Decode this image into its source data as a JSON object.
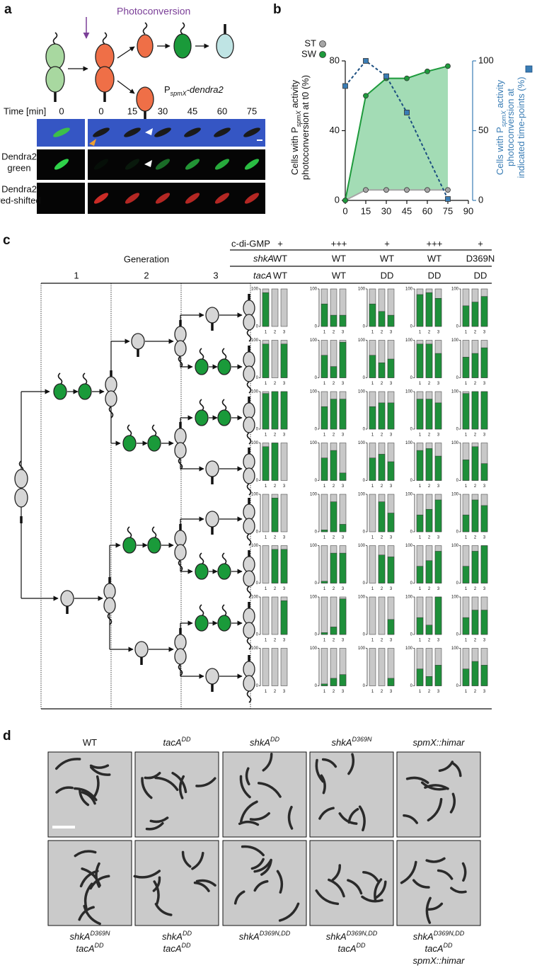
{
  "panel_labels": [
    "a",
    "b",
    "c",
    "d"
  ],
  "panel_a": {
    "photoconversion": "Photoconversion",
    "construct": [
      "P",
      "spmX",
      "-dendra2"
    ],
    "time_label": "Time [min]",
    "times": [
      0,
      0,
      15,
      30,
      45,
      60,
      75
    ],
    "rows": [
      [
        "Dendra2",
        "green"
      ],
      [
        "Dendra2",
        "red-shifted"
      ]
    ]
  },
  "chart_data": [
    {
      "type": "line",
      "x": [
        0,
        15,
        30,
        45,
        60,
        75
      ],
      "xlim": [
        0,
        90
      ],
      "xticks": [
        0,
        15,
        30,
        45,
        60,
        75,
        90
      ],
      "ylim": [
        0,
        80
      ],
      "yticks": [
        0,
        40,
        80
      ],
      "y2lim": [
        0,
        100
      ],
      "y2ticks": [
        0,
        50,
        100
      ],
      "ylabel": [
        [
          "Cells with P",
          "spmX",
          " activity"
        ],
        [
          "photoconversion at t0 (%)"
        ]
      ],
      "y2label": [
        [
          "Cells with P",
          "spmX",
          " activity"
        ],
        [
          "photoconversion at"
        ],
        [
          "indicated time-points (%)"
        ]
      ],
      "y2color": "#3a7db5",
      "legend": "top-left",
      "series": [
        {
          "name": "ST",
          "color": "#a6a6a6",
          "values": [
            0,
            6,
            6,
            6,
            6,
            6
          ]
        },
        {
          "name": "SW",
          "color": "#1e9a3c",
          "fill": "#a3dcb5",
          "values": [
            0,
            60,
            70,
            70,
            74,
            77
          ]
        },
        {
          "color": "#3a7db5",
          "axis": "y2",
          "marker": "square",
          "dashed": true,
          "x": [
            0,
            15,
            30,
            45,
            75
          ],
          "values": [
            82,
            100,
            89,
            63,
            1
          ]
        }
      ]
    },
    {
      "type": "stacked-bar-grid",
      "header": [
        {
          "label": "c-di-GMP",
          "italic": false,
          "values": [
            "+",
            "+++",
            "+",
            "+++",
            "+"
          ]
        },
        {
          "label": "shkA",
          "italic": true,
          "values": [
            "WT",
            "WT",
            "WT",
            "WT",
            "D369N"
          ]
        },
        {
          "label": "tacA",
          "italic": true,
          "values": [
            "WT",
            "WT",
            "DD",
            "DD",
            "DD"
          ]
        }
      ],
      "generation_label": "Generation",
      "generations": [
        1,
        2,
        3
      ],
      "ylim": [
        0,
        100
      ],
      "yticks": [
        0,
        100
      ],
      "bar_labels": [
        1,
        2,
        3
      ],
      "colors": [
        "#1e8f3a",
        "#c8c8c8"
      ],
      "rows": [
        [
          [
            90,
            0,
            0
          ],
          [
            60,
            30,
            30
          ],
          [
            60,
            40,
            30
          ],
          [
            85,
            90,
            75
          ],
          [
            55,
            65,
            80
          ]
        ],
        [
          [
            90,
            0,
            90
          ],
          [
            60,
            30,
            95
          ],
          [
            60,
            40,
            50
          ],
          [
            90,
            90,
            65
          ],
          [
            55,
            65,
            80
          ]
        ],
        [
          [
            95,
            100,
            100
          ],
          [
            60,
            80,
            80
          ],
          [
            60,
            70,
            70
          ],
          [
            80,
            80,
            70
          ],
          [
            95,
            100,
            100
          ]
        ],
        [
          [
            90,
            100,
            0
          ],
          [
            60,
            80,
            20
          ],
          [
            60,
            70,
            50
          ],
          [
            80,
            85,
            65
          ],
          [
            55,
            90,
            45
          ]
        ],
        [
          [
            0,
            90,
            0
          ],
          [
            5,
            80,
            20
          ],
          [
            0,
            80,
            50
          ],
          [
            45,
            60,
            85
          ],
          [
            45,
            85,
            70
          ]
        ],
        [
          [
            0,
            90,
            90
          ],
          [
            5,
            80,
            80
          ],
          [
            0,
            75,
            70
          ],
          [
            45,
            60,
            85
          ],
          [
            45,
            85,
            100
          ]
        ],
        [
          [
            0,
            0,
            90
          ],
          [
            5,
            20,
            95
          ],
          [
            0,
            0,
            40
          ],
          [
            45,
            25,
            100
          ],
          [
            45,
            65,
            65
          ]
        ],
        [
          [
            0,
            0,
            0
          ],
          [
            5,
            20,
            30
          ],
          [
            0,
            0,
            20
          ],
          [
            45,
            25,
            55
          ],
          [
            45,
            65,
            55
          ]
        ]
      ]
    }
  ],
  "panel_d": {
    "top": [
      [
        {
          "name": "WT",
          "italic": false
        }
      ],
      [
        {
          "name": "tacA",
          "sup": "DD"
        }
      ],
      [
        {
          "name": "shkA",
          "sup": "DD"
        }
      ],
      [
        {
          "name": "shkA",
          "sup": "D369N"
        }
      ],
      [
        {
          "name": "spmX::himar"
        }
      ]
    ],
    "bottom": [
      [
        {
          "name": "shkA",
          "sup": "D369N"
        },
        {
          "name": "tacA",
          "sup": "DD"
        }
      ],
      [
        {
          "name": "shkA",
          "sup": "DD"
        },
        {
          "name": "tacA",
          "sup": "DD"
        }
      ],
      [
        {
          "name": "shkA",
          "sup": "D369N,DD"
        }
      ],
      [
        {
          "name": "shkA",
          "sup": "D369N,DD"
        },
        {
          "name": "tacA",
          "sup": "DD"
        }
      ],
      [
        {
          "name": "shkA",
          "sup": "D369N,DD"
        },
        {
          "name": "tacA",
          "sup": "DD"
        },
        {
          "name": "spmX::himar"
        }
      ]
    ]
  }
}
